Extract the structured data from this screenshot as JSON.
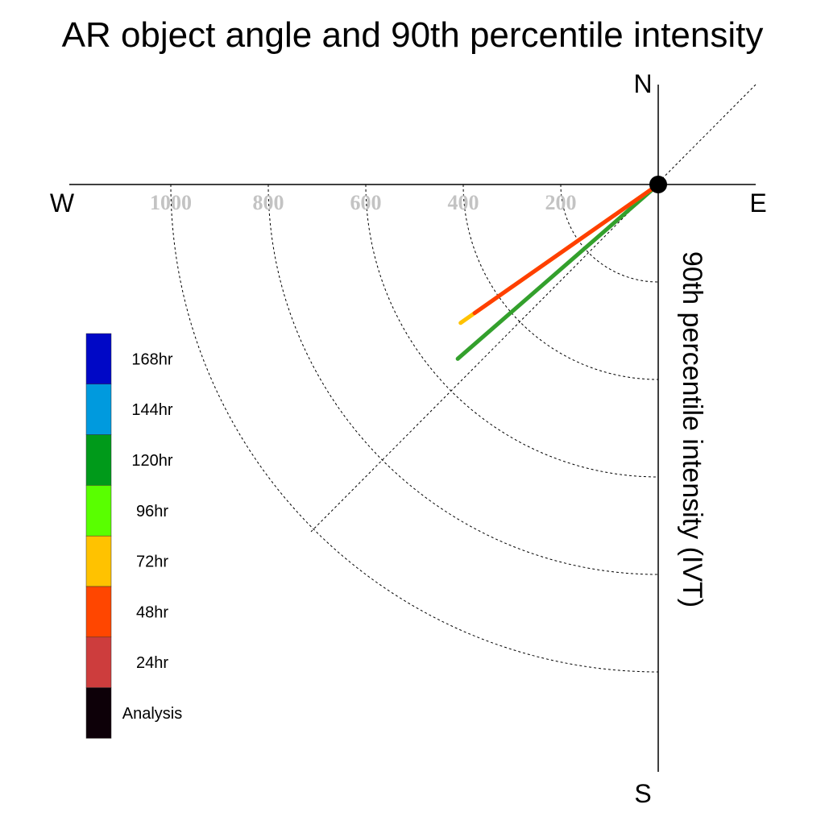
{
  "chart_data": {
    "type": "polar-line",
    "title": "AR object angle and 90th percentile intensity",
    "ylabel": "90th percentile intensity (IVT)",
    "compass": {
      "north": "N",
      "south": "S",
      "east": "E",
      "west": "W"
    },
    "radial_ticks": [
      "200",
      "400",
      "600",
      "800",
      "1000"
    ],
    "radial_tick_values": [
      200,
      400,
      600,
      800,
      1000
    ],
    "rlim": [
      0,
      1000
    ],
    "direction_unit": "degrees from east, clockwise",
    "series": [
      {
        "name": "120hr",
        "color": "#33a02c",
        "angle": 41,
        "intensity": 545
      },
      {
        "name": "72hr",
        "color": "#ffc200",
        "angle": 35,
        "intensity": 495
      },
      {
        "name": "48hr",
        "color": "#ff3f00",
        "angle": 35,
        "intensity": 460
      }
    ],
    "legend": {
      "placement": "left",
      "items": [
        {
          "label": "168hr",
          "color": "#0008c6"
        },
        {
          "label": "144hr",
          "color": "#009ade"
        },
        {
          "label": "120hr",
          "color": "#009a1a"
        },
        {
          "label": "96hr",
          "color": "#59ff00"
        },
        {
          "label": "72hr",
          "color": "#ffc200"
        },
        {
          "label": "48hr",
          "color": "#ff4600"
        },
        {
          "label": "24hr",
          "color": "#cd3d3d"
        },
        {
          "label": "Analysis",
          "color": "#0d0008"
        }
      ]
    }
  }
}
